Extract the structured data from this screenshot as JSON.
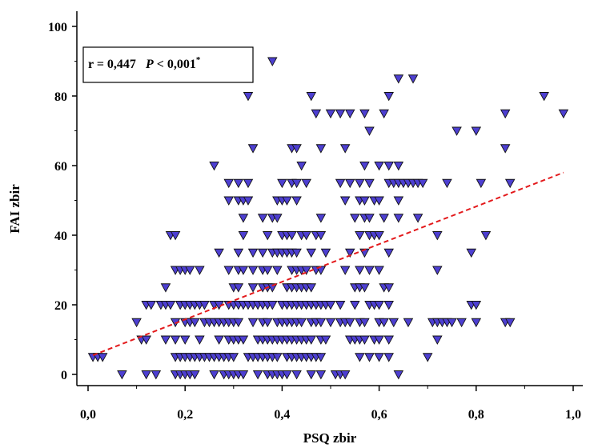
{
  "chart_data": {
    "type": "scatter",
    "xlabel": "PSQ zbir",
    "ylabel": "FAI zbir",
    "xlim": [
      0,
      1
    ],
    "ylim": [
      0,
      100
    ],
    "x_ticks": [
      "0,0",
      "0,2",
      "0,4",
      "0,6",
      "0,8",
      "1,0"
    ],
    "y_ticks": [
      "0",
      "20",
      "40",
      "60",
      "80",
      "100"
    ],
    "annotation": {
      "r_text": "r = 0,447",
      "p_symbol": "P",
      "p_value": "< 0,001",
      "p_mark": "*"
    },
    "marker": {
      "shape": "triangle-down",
      "fill": "#4d3fd1",
      "stroke": "#111111"
    },
    "trend_line": {
      "color": "#e31a1c",
      "style": "dashed",
      "x": [
        0.01,
        0.98
      ],
      "y": [
        5.5,
        58
      ]
    },
    "points": [
      [
        0.01,
        5
      ],
      [
        0.02,
        5
      ],
      [
        0.03,
        5
      ],
      [
        0.07,
        0
      ],
      [
        0.1,
        15
      ],
      [
        0.11,
        10
      ],
      [
        0.12,
        10
      ],
      [
        0.12,
        20
      ],
      [
        0.12,
        0
      ],
      [
        0.13,
        20
      ],
      [
        0.14,
        0
      ],
      [
        0.15,
        20
      ],
      [
        0.16,
        20
      ],
      [
        0.16,
        25
      ],
      [
        0.16,
        10
      ],
      [
        0.17,
        40
      ],
      [
        0.17,
        20
      ],
      [
        0.18,
        40
      ],
      [
        0.18,
        30
      ],
      [
        0.18,
        15
      ],
      [
        0.18,
        10
      ],
      [
        0.18,
        5
      ],
      [
        0.18,
        0
      ],
      [
        0.19,
        30
      ],
      [
        0.19,
        20
      ],
      [
        0.19,
        5
      ],
      [
        0.19,
        0
      ],
      [
        0.2,
        30
      ],
      [
        0.2,
        20
      ],
      [
        0.2,
        15
      ],
      [
        0.2,
        10
      ],
      [
        0.2,
        5
      ],
      [
        0.2,
        0
      ],
      [
        0.21,
        30
      ],
      [
        0.21,
        20
      ],
      [
        0.21,
        15
      ],
      [
        0.21,
        5
      ],
      [
        0.21,
        0
      ],
      [
        0.22,
        20
      ],
      [
        0.22,
        15
      ],
      [
        0.22,
        5
      ],
      [
        0.22,
        0
      ],
      [
        0.23,
        30
      ],
      [
        0.23,
        20
      ],
      [
        0.23,
        10
      ],
      [
        0.23,
        5
      ],
      [
        0.24,
        20
      ],
      [
        0.24,
        15
      ],
      [
        0.24,
        5
      ],
      [
        0.25,
        15
      ],
      [
        0.25,
        5
      ],
      [
        0.26,
        60
      ],
      [
        0.26,
        20
      ],
      [
        0.26,
        15
      ],
      [
        0.26,
        5
      ],
      [
        0.26,
        0
      ],
      [
        0.27,
        35
      ],
      [
        0.27,
        20
      ],
      [
        0.27,
        15
      ],
      [
        0.27,
        10
      ],
      [
        0.27,
        5
      ],
      [
        0.28,
        15
      ],
      [
        0.28,
        5
      ],
      [
        0.28,
        0
      ],
      [
        0.29,
        55
      ],
      [
        0.29,
        50
      ],
      [
        0.29,
        30
      ],
      [
        0.29,
        20
      ],
      [
        0.29,
        15
      ],
      [
        0.29,
        10
      ],
      [
        0.29,
        5
      ],
      [
        0.29,
        0
      ],
      [
        0.3,
        25
      ],
      [
        0.3,
        20
      ],
      [
        0.3,
        15
      ],
      [
        0.3,
        10
      ],
      [
        0.3,
        5
      ],
      [
        0.3,
        0
      ],
      [
        0.31,
        55
      ],
      [
        0.31,
        50
      ],
      [
        0.31,
        35
      ],
      [
        0.31,
        30
      ],
      [
        0.31,
        25
      ],
      [
        0.31,
        20
      ],
      [
        0.31,
        15
      ],
      [
        0.31,
        10
      ],
      [
        0.31,
        0
      ],
      [
        0.32,
        50
      ],
      [
        0.32,
        45
      ],
      [
        0.32,
        40
      ],
      [
        0.32,
        30
      ],
      [
        0.32,
        20
      ],
      [
        0.32,
        10
      ],
      [
        0.32,
        0
      ],
      [
        0.33,
        80
      ],
      [
        0.33,
        55
      ],
      [
        0.33,
        50
      ],
      [
        0.33,
        20
      ],
      [
        0.33,
        5
      ],
      [
        0.34,
        65
      ],
      [
        0.34,
        35
      ],
      [
        0.34,
        30
      ],
      [
        0.34,
        25
      ],
      [
        0.34,
        20
      ],
      [
        0.34,
        15
      ],
      [
        0.34,
        5
      ],
      [
        0.35,
        20
      ],
      [
        0.35,
        10
      ],
      [
        0.35,
        5
      ],
      [
        0.35,
        0
      ],
      [
        0.36,
        45
      ],
      [
        0.36,
        35
      ],
      [
        0.36,
        30
      ],
      [
        0.36,
        25
      ],
      [
        0.36,
        20
      ],
      [
        0.36,
        15
      ],
      [
        0.36,
        10
      ],
      [
        0.36,
        5
      ],
      [
        0.37,
        40
      ],
      [
        0.37,
        30
      ],
      [
        0.37,
        25
      ],
      [
        0.37,
        20
      ],
      [
        0.37,
        15
      ],
      [
        0.37,
        10
      ],
      [
        0.37,
        5
      ],
      [
        0.37,
        0
      ],
      [
        0.38,
        90
      ],
      [
        0.38,
        45
      ],
      [
        0.38,
        35
      ],
      [
        0.38,
        25
      ],
      [
        0.38,
        20
      ],
      [
        0.38,
        10
      ],
      [
        0.38,
        5
      ],
      [
        0.38,
        0
      ],
      [
        0.39,
        50
      ],
      [
        0.39,
        45
      ],
      [
        0.39,
        35
      ],
      [
        0.39,
        30
      ],
      [
        0.39,
        15
      ],
      [
        0.39,
        10
      ],
      [
        0.39,
        5
      ],
      [
        0.39,
        0
      ],
      [
        0.4,
        55
      ],
      [
        0.4,
        50
      ],
      [
        0.4,
        40
      ],
      [
        0.4,
        35
      ],
      [
        0.4,
        20
      ],
      [
        0.4,
        15
      ],
      [
        0.4,
        10
      ],
      [
        0.4,
        0
      ],
      [
        0.41,
        50
      ],
      [
        0.41,
        40
      ],
      [
        0.41,
        35
      ],
      [
        0.41,
        25
      ],
      [
        0.41,
        20
      ],
      [
        0.41,
        15
      ],
      [
        0.41,
        10
      ],
      [
        0.41,
        5
      ],
      [
        0.41,
        0
      ],
      [
        0.42,
        65
      ],
      [
        0.42,
        55
      ],
      [
        0.42,
        40
      ],
      [
        0.42,
        35
      ],
      [
        0.42,
        30
      ],
      [
        0.42,
        25
      ],
      [
        0.42,
        20
      ],
      [
        0.42,
        15
      ],
      [
        0.42,
        10
      ],
      [
        0.42,
        5
      ],
      [
        0.43,
        65
      ],
      [
        0.43,
        55
      ],
      [
        0.43,
        50
      ],
      [
        0.43,
        35
      ],
      [
        0.43,
        30
      ],
      [
        0.43,
        25
      ],
      [
        0.43,
        20
      ],
      [
        0.43,
        15
      ],
      [
        0.43,
        10
      ],
      [
        0.43,
        5
      ],
      [
        0.43,
        0
      ],
      [
        0.44,
        60
      ],
      [
        0.44,
        40
      ],
      [
        0.44,
        30
      ],
      [
        0.44,
        25
      ],
      [
        0.44,
        20
      ],
      [
        0.44,
        15
      ],
      [
        0.44,
        10
      ],
      [
        0.44,
        5
      ],
      [
        0.45,
        55
      ],
      [
        0.45,
        40
      ],
      [
        0.45,
        30
      ],
      [
        0.45,
        25
      ],
      [
        0.45,
        20
      ],
      [
        0.45,
        10
      ],
      [
        0.45,
        5
      ],
      [
        0.46,
        80
      ],
      [
        0.46,
        35
      ],
      [
        0.46,
        25
      ],
      [
        0.46,
        20
      ],
      [
        0.46,
        15
      ],
      [
        0.46,
        10
      ],
      [
        0.46,
        5
      ],
      [
        0.46,
        0
      ],
      [
        0.47,
        75
      ],
      [
        0.47,
        40
      ],
      [
        0.47,
        30
      ],
      [
        0.47,
        20
      ],
      [
        0.47,
        15
      ],
      [
        0.47,
        5
      ],
      [
        0.48,
        65
      ],
      [
        0.48,
        45
      ],
      [
        0.48,
        40
      ],
      [
        0.48,
        30
      ],
      [
        0.48,
        20
      ],
      [
        0.48,
        15
      ],
      [
        0.48,
        10
      ],
      [
        0.48,
        5
      ],
      [
        0.48,
        0
      ],
      [
        0.49,
        35
      ],
      [
        0.49,
        20
      ],
      [
        0.49,
        10
      ],
      [
        0.5,
        75
      ],
      [
        0.5,
        20
      ],
      [
        0.5,
        15
      ],
      [
        0.51,
        0
      ],
      [
        0.52,
        75
      ],
      [
        0.52,
        55
      ],
      [
        0.52,
        20
      ],
      [
        0.52,
        15
      ],
      [
        0.52,
        0
      ],
      [
        0.53,
        65
      ],
      [
        0.53,
        50
      ],
      [
        0.53,
        30
      ],
      [
        0.53,
        15
      ],
      [
        0.53,
        0
      ],
      [
        0.54,
        75
      ],
      [
        0.54,
        55
      ],
      [
        0.54,
        35
      ],
      [
        0.54,
        15
      ],
      [
        0.54,
        10
      ],
      [
        0.55,
        45
      ],
      [
        0.55,
        25
      ],
      [
        0.55,
        20
      ],
      [
        0.55,
        10
      ],
      [
        0.56,
        55
      ],
      [
        0.56,
        50
      ],
      [
        0.56,
        40
      ],
      [
        0.56,
        30
      ],
      [
        0.56,
        25
      ],
      [
        0.56,
        15
      ],
      [
        0.56,
        10
      ],
      [
        0.56,
        5
      ],
      [
        0.57,
        75
      ],
      [
        0.57,
        60
      ],
      [
        0.57,
        50
      ],
      [
        0.57,
        45
      ],
      [
        0.57,
        35
      ],
      [
        0.57,
        25
      ],
      [
        0.57,
        15
      ],
      [
        0.57,
        10
      ],
      [
        0.58,
        70
      ],
      [
        0.58,
        55
      ],
      [
        0.58,
        45
      ],
      [
        0.58,
        40
      ],
      [
        0.58,
        30
      ],
      [
        0.58,
        20
      ],
      [
        0.58,
        5
      ],
      [
        0.59,
        50
      ],
      [
        0.59,
        40
      ],
      [
        0.59,
        20
      ],
      [
        0.59,
        10
      ],
      [
        0.6,
        60
      ],
      [
        0.6,
        50
      ],
      [
        0.6,
        40
      ],
      [
        0.6,
        30
      ],
      [
        0.6,
        20
      ],
      [
        0.6,
        15
      ],
      [
        0.6,
        10
      ],
      [
        0.6,
        5
      ],
      [
        0.61,
        75
      ],
      [
        0.61,
        45
      ],
      [
        0.61,
        25
      ],
      [
        0.61,
        15
      ],
      [
        0.62,
        80
      ],
      [
        0.62,
        60
      ],
      [
        0.62,
        55
      ],
      [
        0.62,
        35
      ],
      [
        0.62,
        25
      ],
      [
        0.62,
        20
      ],
      [
        0.62,
        10
      ],
      [
        0.62,
        5
      ],
      [
        0.63,
        55
      ],
      [
        0.63,
        15
      ],
      [
        0.64,
        85
      ],
      [
        0.64,
        60
      ],
      [
        0.64,
        55
      ],
      [
        0.64,
        50
      ],
      [
        0.64,
        45
      ],
      [
        0.64,
        0
      ],
      [
        0.65,
        55
      ],
      [
        0.66,
        55
      ],
      [
        0.66,
        15
      ],
      [
        0.67,
        85
      ],
      [
        0.67,
        55
      ],
      [
        0.68,
        55
      ],
      [
        0.68,
        45
      ],
      [
        0.69,
        55
      ],
      [
        0.7,
        5
      ],
      [
        0.71,
        15
      ],
      [
        0.72,
        10
      ],
      [
        0.72,
        40
      ],
      [
        0.72,
        30
      ],
      [
        0.72,
        15
      ],
      [
        0.73,
        15
      ],
      [
        0.74,
        55
      ],
      [
        0.74,
        15
      ],
      [
        0.75,
        15
      ],
      [
        0.76,
        70
      ],
      [
        0.77,
        15
      ],
      [
        0.79,
        35
      ],
      [
        0.79,
        20
      ],
      [
        0.8,
        70
      ],
      [
        0.8,
        20
      ],
      [
        0.8,
        15
      ],
      [
        0.81,
        55
      ],
      [
        0.82,
        40
      ],
      [
        0.86,
        75
      ],
      [
        0.86,
        65
      ],
      [
        0.86,
        15
      ],
      [
        0.87,
        55
      ],
      [
        0.87,
        15
      ],
      [
        0.94,
        80
      ],
      [
        0.98,
        75
      ]
    ]
  }
}
